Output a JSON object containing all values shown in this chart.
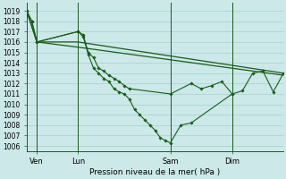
{
  "bg_color": "#cce8e8",
  "grid_color": "#99cccc",
  "line_color": "#1a5c1a",
  "ylabel_ticks": [
    1006,
    1007,
    1008,
    1009,
    1010,
    1011,
    1012,
    1013,
    1014,
    1015,
    1016,
    1017,
    1018,
    1019
  ],
  "ylim": [
    1005.5,
    1019.8
  ],
  "xlabel": "Pression niveau de la mer( hPa )",
  "xlim": [
    0,
    100
  ],
  "xtick_positions": [
    4,
    20,
    56,
    80
  ],
  "xtick_labels": [
    "Ven",
    "Lun",
    "Sam",
    "Dim"
  ],
  "vline_positions": [
    4,
    20,
    56,
    80
  ],
  "series": [
    {
      "x": [
        0,
        4,
        20,
        100
      ],
      "y": [
        1019.0,
        1016.0,
        1016.0,
        1013.0
      ],
      "marker": false,
      "linestyle": "-",
      "linewidth": 0.9
    },
    {
      "x": [
        0,
        4,
        20,
        100
      ],
      "y": [
        1019.0,
        1016.0,
        1015.5,
        1012.8
      ],
      "marker": false,
      "linestyle": "-",
      "linewidth": 0.9
    },
    {
      "x": [
        0,
        2,
        4,
        20,
        22,
        24,
        26,
        28,
        30,
        32,
        34,
        36,
        38,
        40,
        56,
        64,
        68,
        72,
        76,
        80,
        84,
        88,
        92,
        96,
        100
      ],
      "y": [
        1019.0,
        1018.0,
        1016.0,
        1017.0,
        1016.7,
        1015.0,
        1014.5,
        1013.5,
        1013.2,
        1012.8,
        1012.5,
        1012.2,
        1011.8,
        1011.5,
        1011.0,
        1012.0,
        1011.5,
        1011.8,
        1012.2,
        1011.0,
        1011.3,
        1013.0,
        1013.2,
        1011.2,
        1013.0
      ],
      "marker": true,
      "linestyle": "-",
      "linewidth": 0.8
    },
    {
      "x": [
        0,
        2,
        4,
        20,
        22,
        24,
        26,
        28,
        30,
        32,
        34,
        36,
        38,
        40,
        42,
        44,
        46,
        48,
        50,
        52,
        54,
        56,
        60,
        64,
        80
      ],
      "y": [
        1019.0,
        1018.0,
        1016.0,
        1017.0,
        1016.5,
        1014.8,
        1013.5,
        1013.0,
        1012.5,
        1012.2,
        1011.5,
        1011.2,
        1011.0,
        1010.5,
        1009.5,
        1009.0,
        1008.5,
        1008.0,
        1007.5,
        1006.8,
        1006.5,
        1006.3,
        1008.0,
        1008.2,
        1011.0
      ],
      "marker": true,
      "linestyle": "-",
      "linewidth": 0.8
    }
  ]
}
